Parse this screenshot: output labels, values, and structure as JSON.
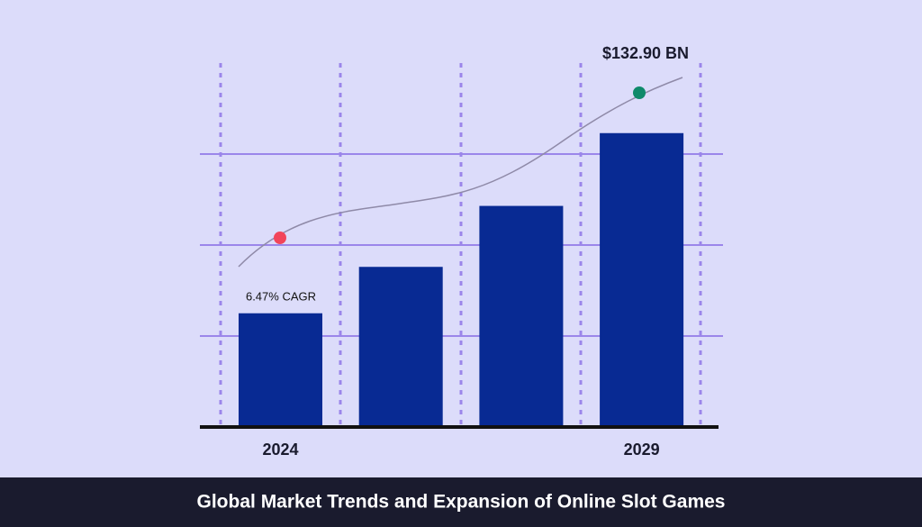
{
  "chart_data": {
    "type": "bar",
    "title": "Global Market Trends and Expansion of Online Slot Games",
    "categories": [
      "2024",
      null,
      null,
      "2029"
    ],
    "values": [
      1.25,
      1.76,
      2.43,
      3.23
    ],
    "color": "#082a93",
    "ylim": [
      0,
      4
    ],
    "annotations": [
      "6.47% CAGR",
      "$132.90 BN"
    ]
  }
}
